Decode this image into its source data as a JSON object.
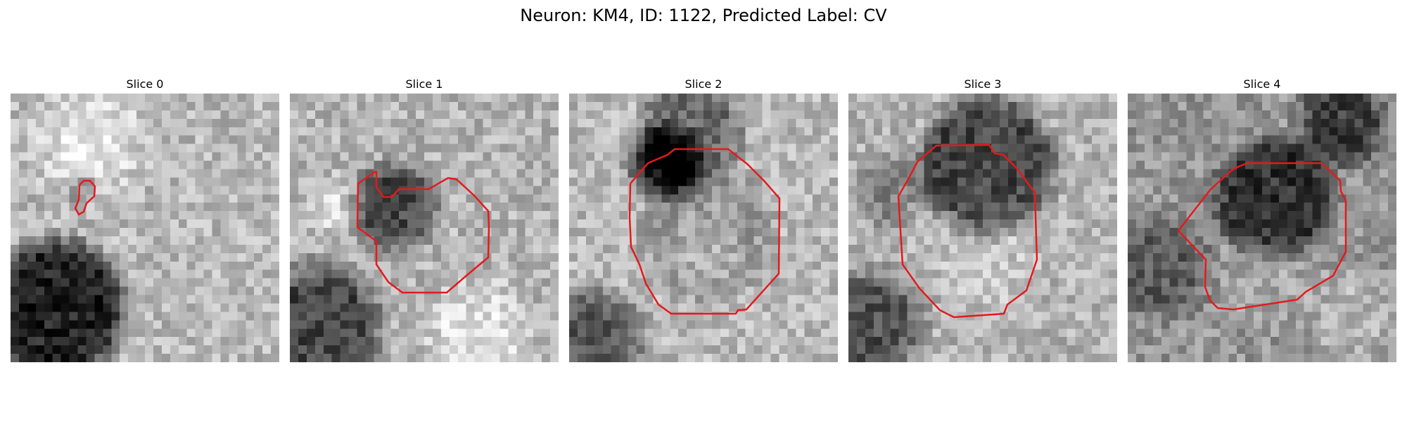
{
  "figure": {
    "title": "Neuron: KM4, ID: 1122, Predicted Label: CV",
    "panels": [
      {
        "label": "Slice 0"
      },
      {
        "label": "Slice 1"
      },
      {
        "label": "Slice 2"
      },
      {
        "label": "Slice 3"
      },
      {
        "label": "Slice 4"
      }
    ],
    "contour_color": "#e41a1c",
    "colormap": "grayscale"
  }
}
